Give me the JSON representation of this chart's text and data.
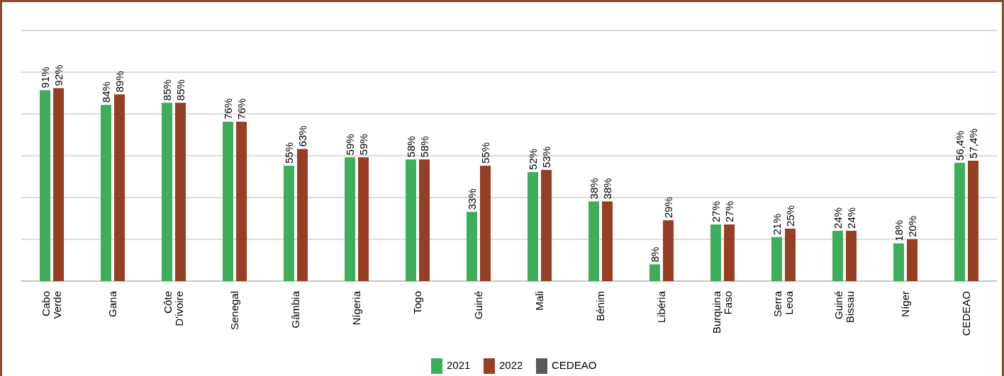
{
  "chart_data": {
    "type": "bar",
    "categories": [
      "Cabo Verde",
      "Gana",
      "Côte D'ivoire",
      "Senegal",
      "Gâmbia",
      "Nígeria",
      "Togo",
      "Guiné",
      "Mali",
      "Bénim",
      "Libéria",
      "Burquina Faso",
      "Serra Leoa",
      "Guiné Bissau",
      "Níger",
      "CEDEAO"
    ],
    "series": [
      {
        "name": "2021",
        "color": "#3fae5a",
        "values": [
          91,
          84,
          85,
          76,
          55,
          59,
          58,
          33,
          52,
          38,
          8,
          27,
          21,
          24,
          18,
          56.4
        ],
        "value_labels": [
          "91%",
          "84%",
          "85%",
          "76%",
          "55%",
          "59%",
          "58%",
          "33%",
          "52%",
          "38%",
          "8%",
          "27%",
          "21%",
          "24%",
          "18%",
          "56,4%"
        ]
      },
      {
        "name": "2022",
        "color": "#973f25",
        "values": [
          92,
          89,
          85,
          76,
          63,
          59,
          58,
          55,
          53,
          38,
          29,
          27,
          25,
          24,
          20,
          57.4
        ],
        "value_labels": [
          "92%",
          "89%",
          "85%",
          "76%",
          "63%",
          "59%",
          "58%",
          "55%",
          "53%",
          "38%",
          "29%",
          "27%",
          "25%",
          "24%",
          "20%",
          "57,4%"
        ]
      },
      {
        "name": "CEDEAO",
        "color": "#595959",
        "values": [
          null,
          null,
          null,
          null,
          null,
          null,
          null,
          null,
          null,
          null,
          null,
          null,
          null,
          null,
          null,
          null
        ]
      }
    ],
    "grid": "y",
    "tick_labels": "x",
    "legend": "bottom"
  }
}
